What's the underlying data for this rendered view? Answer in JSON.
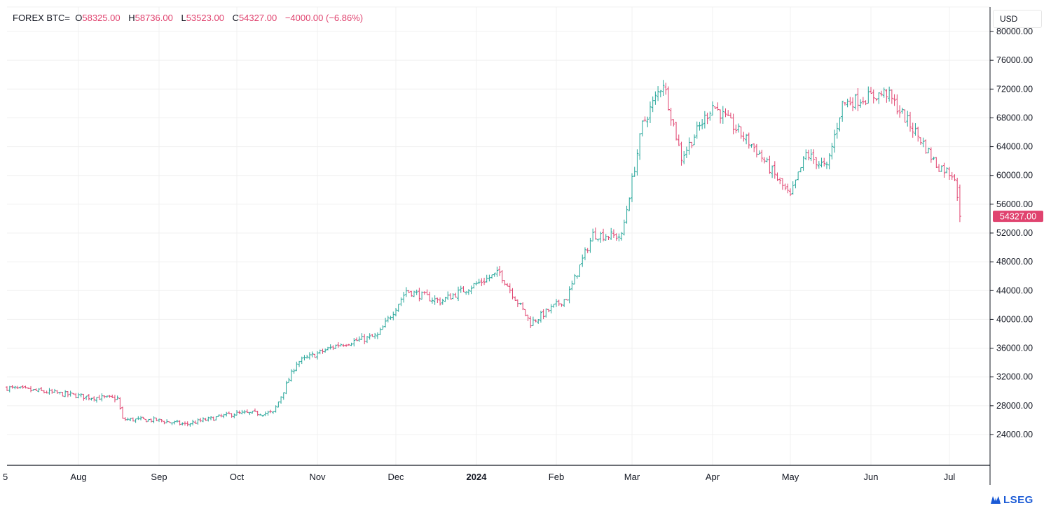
{
  "header": {
    "symbol": "FOREX BTC=",
    "open_label": "O",
    "open_value": "58325.00",
    "high_label": "H",
    "high_value": "58736.00",
    "low_label": "L",
    "low_value": "53523.00",
    "close_label": "C",
    "close_value": "54327.00",
    "change": "−4000.00 (−6.86%)"
  },
  "currency": "USD",
  "last_price_label": "54327.00",
  "brand": "LSEG",
  "colors": {
    "up": "#26a69a",
    "down": "#e0436f",
    "grid": "#f0f0f0",
    "axis": "#131722",
    "last_price_bg": "#e0436f"
  },
  "chart_data": {
    "type": "candlestick",
    "title": "",
    "x_axis_labels": [
      "5",
      "Aug",
      "Sep",
      "Oct",
      "Nov",
      "Dec",
      "2024",
      "Feb",
      "Mar",
      "Apr",
      "May",
      "Jun",
      "Jul"
    ],
    "y_axis_labels": [
      "80000.00",
      "76000.00",
      "72000.00",
      "68000.00",
      "64000.00",
      "60000.00",
      "56000.00",
      "52000.00",
      "48000.00",
      "44000.00",
      "40000.00",
      "36000.00",
      "32000.00",
      "28000.00",
      "24000.00"
    ],
    "ylim": [
      20000,
      80000
    ],
    "grid": true,
    "price_axis": "right",
    "last_price": 54327,
    "approx_close_path": [
      [
        "2023-07-05",
        30500
      ],
      [
        "2023-07-20",
        29900
      ],
      [
        "2023-08-05",
        29200
      ],
      [
        "2023-08-16",
        29000
      ],
      [
        "2023-08-18",
        26100
      ],
      [
        "2023-08-31",
        26000
      ],
      [
        "2023-09-11",
        25400
      ],
      [
        "2023-09-30",
        26900
      ],
      [
        "2023-10-15",
        27000
      ],
      [
        "2023-10-24",
        34000
      ],
      [
        "2023-11-09",
        36500
      ],
      [
        "2023-11-24",
        37700
      ],
      [
        "2023-12-05",
        44000
      ],
      [
        "2023-12-18",
        42500
      ],
      [
        "2024-01-10",
        46500
      ],
      [
        "2024-01-22",
        39500
      ],
      [
        "2024-02-05",
        43000
      ],
      [
        "2024-02-15",
        51800
      ],
      [
        "2024-02-26",
        51500
      ],
      [
        "2024-03-05",
        67000
      ],
      [
        "2024-03-13",
        73000
      ],
      [
        "2024-03-20",
        62500
      ],
      [
        "2024-04-01",
        69800
      ],
      [
        "2024-04-18",
        63500
      ],
      [
        "2024-05-01",
        57000
      ],
      [
        "2024-05-07",
        63000
      ],
      [
        "2024-05-15",
        61000
      ],
      [
        "2024-05-21",
        70000
      ],
      [
        "2024-06-07",
        71500
      ],
      [
        "2024-06-20",
        65000
      ],
      [
        "2024-06-26",
        61500
      ],
      [
        "2024-07-03",
        60000
      ],
      [
        "2024-07-05",
        54327
      ]
    ]
  }
}
